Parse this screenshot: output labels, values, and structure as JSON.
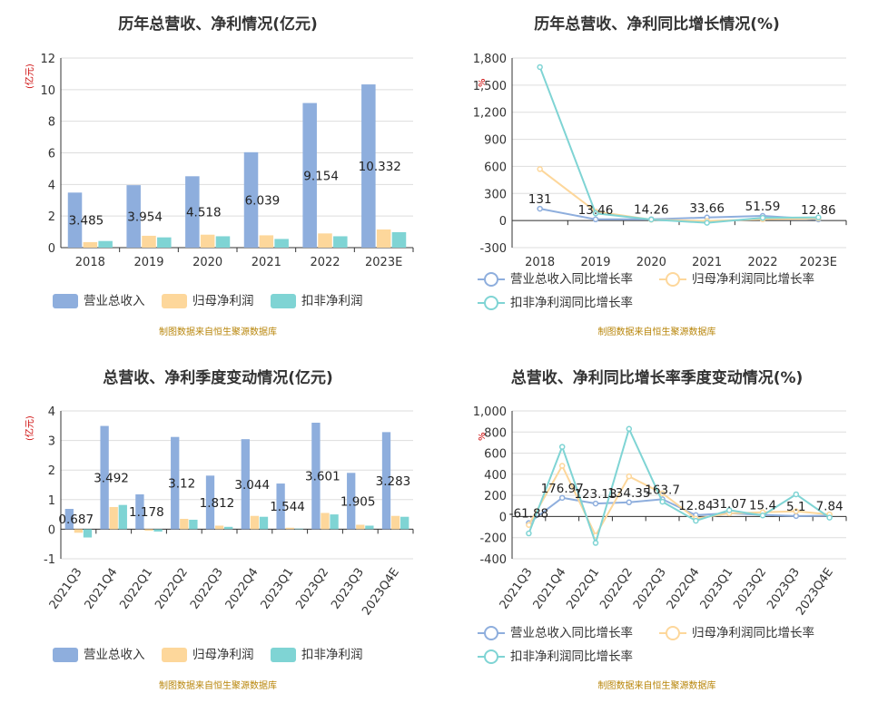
{
  "colors": {
    "revenue": "#8eaedd",
    "net_profit": "#fdd79b",
    "deducted_profit": "#7fd4d4",
    "source_text": "#b8860b",
    "unit_text": "#cc0000"
  },
  "source": "制图数据来自恒生聚源数据库",
  "legend_labels": {
    "revenue": "营业总收入",
    "net_profit": "归母净利润",
    "deducted_profit": "扣非净利润",
    "revenue_growth": "营业总收入同比增长率",
    "net_growth": "归母净利润同比增长率",
    "deducted_growth": "扣非净利润同比增长率"
  },
  "chart_data": [
    {
      "type": "bar",
      "title": "历年总营收、净利情况(亿元)",
      "ylabel": "(亿元)",
      "ylim": [
        0,
        12
      ],
      "yticks": [
        0,
        2,
        4,
        6,
        8,
        10,
        12
      ],
      "categories": [
        "2018",
        "2019",
        "2020",
        "2021",
        "2022",
        "2023E"
      ],
      "series": [
        {
          "name": "营业总收入",
          "values": [
            3.485,
            3.954,
            4.518,
            6.039,
            9.154,
            10.332
          ]
        },
        {
          "name": "归母净利润",
          "values": [
            0.35,
            0.75,
            0.82,
            0.78,
            0.9,
            1.15
          ]
        },
        {
          "name": "扣非净利润",
          "values": [
            0.42,
            0.65,
            0.72,
            0.55,
            0.72,
            0.98
          ]
        }
      ],
      "data_labels": [
        "3.485",
        "3.954",
        "4.518",
        "6.039",
        "9.154",
        "10.332"
      ],
      "grid": true,
      "legend": "bottom"
    },
    {
      "type": "line",
      "title": "历年总营收、净利同比增长情况(%)",
      "ylabel": "%",
      "ylim": [
        -300,
        1800
      ],
      "yticks": [
        -300,
        0,
        300,
        600,
        900,
        1200,
        1500,
        1800
      ],
      "ytick_labels": [
        "-300",
        "0",
        "300",
        "600",
        "900",
        "1,200",
        "1,500",
        "1,800"
      ],
      "categories": [
        "2018",
        "2019",
        "2020",
        "2021",
        "2022",
        "2023E"
      ],
      "series": [
        {
          "name": "营业总收入同比增长率",
          "values": [
            131,
            13.46,
            14.26,
            33.66,
            51.59,
            12.86
          ]
        },
        {
          "name": "归母净利润同比增长率",
          "values": [
            570,
            100,
            10,
            -5,
            15,
            25
          ]
        },
        {
          "name": "扣非净利润同比增长率",
          "values": [
            1700,
            80,
            12,
            -25,
            30,
            35
          ]
        }
      ],
      "data_labels": [
        "131",
        "13.46",
        "14.26",
        "33.66",
        "51.59",
        "12.86"
      ],
      "grid": true,
      "legend": "bottom"
    },
    {
      "type": "bar",
      "title": "总营收、净利季度变动情况(亿元)",
      "ylabel": "(亿元)",
      "ylim": [
        -1,
        4
      ],
      "yticks": [
        -1,
        0,
        1,
        2,
        3,
        4
      ],
      "categories": [
        "2021Q3",
        "2021Q4",
        "2022Q1",
        "2022Q2",
        "2022Q3",
        "2022Q4",
        "2023Q1",
        "2023Q2",
        "2023Q3",
        "2023Q4E"
      ],
      "series": [
        {
          "name": "营业总收入",
          "values": [
            0.687,
            3.492,
            1.178,
            3.12,
            1.812,
            3.044,
            1.544,
            3.601,
            1.905,
            3.283
          ]
        },
        {
          "name": "归母净利润",
          "values": [
            -0.12,
            0.75,
            -0.05,
            0.35,
            0.12,
            0.45,
            0.05,
            0.55,
            0.15,
            0.45
          ]
        },
        {
          "name": "扣非净利润",
          "values": [
            -0.28,
            0.82,
            -0.08,
            0.32,
            0.08,
            0.42,
            0.02,
            0.5,
            0.12,
            0.42
          ]
        }
      ],
      "data_labels": [
        "0.687",
        "3.492",
        "1.178",
        "3.12",
        "1.812",
        "3.044",
        "1.544",
        "3.601",
        "1.905",
        "3.283"
      ],
      "grid": true,
      "legend": "bottom"
    },
    {
      "type": "line",
      "title": "总营收、净利同比增长率季度变动情况(%)",
      "ylabel": "%",
      "ylim": [
        -400,
        1000
      ],
      "yticks": [
        -400,
        -200,
        0,
        200,
        400,
        600,
        800,
        1000
      ],
      "ytick_labels": [
        "-400",
        "-200",
        "0",
        "200",
        "400",
        "600",
        "800",
        "1,000"
      ],
      "categories": [
        "2021Q3",
        "2021Q4",
        "2022Q1",
        "2022Q2",
        "2022Q3",
        "2022Q4",
        "2023Q1",
        "2023Q2",
        "2023Q3",
        "2023Q4E"
      ],
      "series": [
        {
          "name": "营业总收入同比增长率",
          "values": [
            -61.88,
            176.97,
            123.13,
            134.35,
            163.7,
            12.84,
            31.07,
            15.4,
            5.1,
            7.84
          ]
        },
        {
          "name": "归母净利润同比增长率",
          "values": [
            -80,
            480,
            -180,
            380,
            220,
            -20,
            30,
            40,
            50,
            20
          ]
        },
        {
          "name": "扣非净利润同比增长率",
          "values": [
            -160,
            660,
            -250,
            830,
            140,
            -40,
            60,
            10,
            210,
            -10
          ]
        }
      ],
      "data_labels": [
        "-61.88",
        "176.97",
        "123.13",
        "134.35",
        "163.7",
        "12.84",
        "31.07",
        "15.4",
        "5.1",
        "7.84"
      ],
      "grid": true,
      "legend": "bottom"
    }
  ]
}
